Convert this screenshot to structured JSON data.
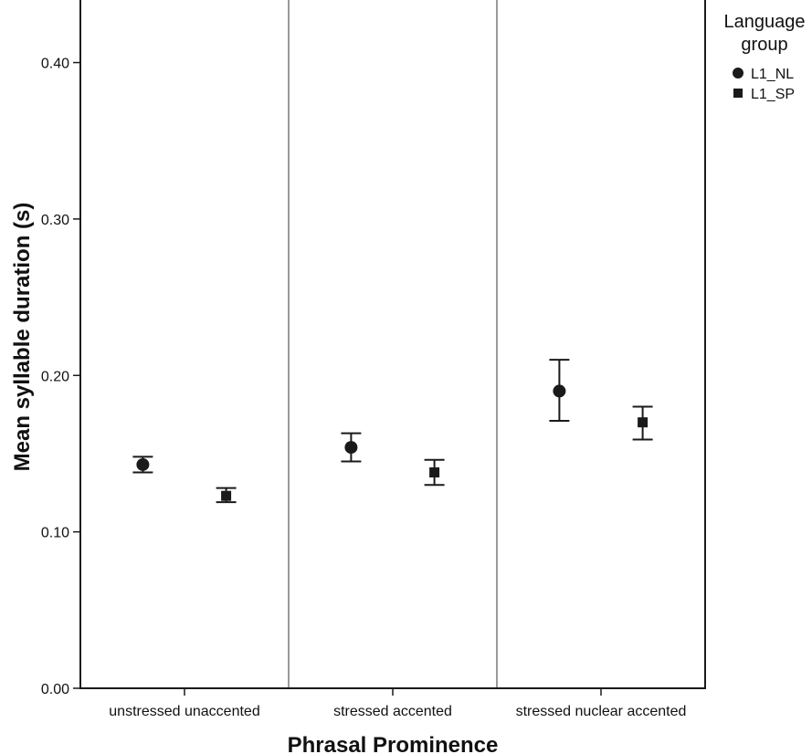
{
  "chart_data": {
    "type": "scatter",
    "title": "",
    "xlabel": "Phrasal Prominence",
    "ylabel": "Mean syllable duration (s)",
    "ylim": [
      0.0,
      0.44
    ],
    "yticks": [
      0.0,
      0.1,
      0.2,
      0.3,
      0.4
    ],
    "ytick_labels": [
      "0.00",
      "0.10",
      "0.20",
      "0.30",
      "0.40"
    ],
    "categories": [
      "unstressed unaccented",
      "stressed accented",
      "stressed nuclear accented"
    ],
    "grid": false,
    "legend": {
      "title": "Language group",
      "title_lines": [
        "Language",
        "group"
      ],
      "placement": "outside-top-right"
    },
    "series": [
      {
        "name": "L1_NL",
        "marker": "circle",
        "color": "#1a1a1a",
        "values": [
          0.143,
          0.154,
          0.19
        ],
        "lower": [
          0.138,
          0.145,
          0.171
        ],
        "upper": [
          0.148,
          0.163,
          0.21
        ]
      },
      {
        "name": "L1_SP",
        "marker": "square",
        "color": "#1a1a1a",
        "values": [
          0.123,
          0.138,
          0.17
        ],
        "lower": [
          0.119,
          0.13,
          0.159
        ],
        "upper": [
          0.128,
          0.146,
          0.18
        ]
      }
    ],
    "panel_divider_color": "#9a9a9a"
  }
}
